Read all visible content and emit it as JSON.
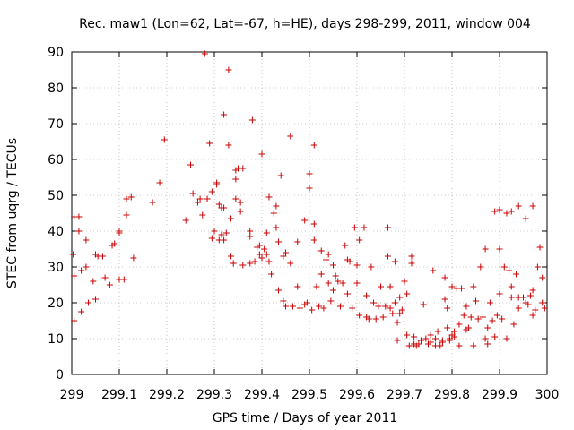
{
  "chart_data": {
    "type": "scatter",
    "title": "Rec. maw1 (Lon=62, Lat=-67, h=HE), days 298-299, 2011, window 004",
    "xlabel": "GPS time / Days of year 2011",
    "ylabel": "STEC from uqrg / TECUs",
    "xlim": [
      299,
      300
    ],
    "ylim": [
      0,
      90
    ],
    "grid": true,
    "marker": "+",
    "color": "#cc0000",
    "x_ticks": [
      299,
      299.1,
      299.2,
      299.3,
      299.4,
      299.5,
      299.6,
      299.7,
      299.8,
      299.9,
      300
    ],
    "x_tick_labels": [
      "299",
      "299.1",
      "299.2",
      "299.3",
      "299.4",
      "299.5",
      "299.6",
      "299.7",
      "299.8",
      "299.9",
      "300"
    ],
    "y_ticks": [
      0,
      10,
      20,
      30,
      40,
      50,
      60,
      70,
      80,
      90
    ],
    "y_tick_labels": [
      "0",
      "10",
      "20",
      "30",
      "40",
      "50",
      "60",
      "70",
      "80",
      "90"
    ],
    "series": [
      {
        "name": "STEC",
        "points": [
          [
            299.003,
            33.5
          ],
          [
            299.005,
            27.5
          ],
          [
            299.005,
            15
          ],
          [
            299.005,
            44
          ],
          [
            299.015,
            44
          ],
          [
            299.015,
            40
          ],
          [
            299.02,
            17.5
          ],
          [
            299.02,
            29
          ],
          [
            299.03,
            37.5
          ],
          [
            299.03,
            30
          ],
          [
            299.035,
            20
          ],
          [
            299.045,
            26
          ],
          [
            299.05,
            33.5
          ],
          [
            299.05,
            21
          ],
          [
            299.055,
            33
          ],
          [
            299.065,
            33
          ],
          [
            299.07,
            27
          ],
          [
            299.08,
            25
          ],
          [
            299.085,
            36
          ],
          [
            299.09,
            36.5
          ],
          [
            299.1,
            40
          ],
          [
            299.1,
            39.5
          ],
          [
            299.1,
            26.5
          ],
          [
            299.11,
            26.5
          ],
          [
            299.115,
            49
          ],
          [
            299.115,
            44.5
          ],
          [
            299.125,
            49.5
          ],
          [
            299.13,
            32.5
          ],
          [
            299.17,
            48
          ],
          [
            299.185,
            53.5
          ],
          [
            299.195,
            65.5
          ],
          [
            299.24,
            43
          ],
          [
            299.25,
            58.5
          ],
          [
            299.255,
            50.5
          ],
          [
            299.265,
            48
          ],
          [
            299.27,
            49
          ],
          [
            299.275,
            44.5
          ],
          [
            299.28,
            89.5
          ],
          [
            299.285,
            49
          ],
          [
            299.29,
            64.5
          ],
          [
            299.295,
            51
          ],
          [
            299.295,
            38
          ],
          [
            299.3,
            40
          ],
          [
            299.305,
            53.5
          ],
          [
            299.305,
            53
          ],
          [
            299.31,
            47.5
          ],
          [
            299.31,
            37.5
          ],
          [
            299.315,
            46.5
          ],
          [
            299.315,
            39
          ],
          [
            299.32,
            72.5
          ],
          [
            299.32,
            46.5
          ],
          [
            299.32,
            37.5
          ],
          [
            299.325,
            39.5
          ],
          [
            299.33,
            85
          ],
          [
            299.33,
            64
          ],
          [
            299.335,
            43.5
          ],
          [
            299.335,
            33
          ],
          [
            299.34,
            31
          ],
          [
            299.345,
            57
          ],
          [
            299.345,
            54.5
          ],
          [
            299.345,
            49
          ],
          [
            299.35,
            57.5
          ],
          [
            299.355,
            48
          ],
          [
            299.355,
            45.5
          ],
          [
            299.36,
            30.5
          ],
          [
            299.36,
            57.5
          ],
          [
            299.375,
            31
          ],
          [
            299.375,
            40
          ],
          [
            299.375,
            38.5
          ],
          [
            299.38,
            71
          ],
          [
            299.385,
            31.5
          ],
          [
            299.39,
            35.5
          ],
          [
            299.395,
            36
          ],
          [
            299.395,
            33.5
          ],
          [
            299.4,
            61.5
          ],
          [
            299.4,
            32.5
          ],
          [
            299.405,
            35
          ],
          [
            299.41,
            39.5
          ],
          [
            299.41,
            33.5
          ],
          [
            299.415,
            49.5
          ],
          [
            299.415,
            31.5
          ],
          [
            299.42,
            28
          ],
          [
            299.425,
            45
          ],
          [
            299.43,
            47
          ],
          [
            299.43,
            41
          ],
          [
            299.435,
            37
          ],
          [
            299.435,
            23.5
          ],
          [
            299.44,
            55.5
          ],
          [
            299.445,
            33
          ],
          [
            299.445,
            20.5
          ],
          [
            299.45,
            34
          ],
          [
            299.45,
            19
          ],
          [
            299.46,
            66.5
          ],
          [
            299.46,
            31
          ],
          [
            299.465,
            19
          ],
          [
            299.475,
            37
          ],
          [
            299.475,
            24.5
          ],
          [
            299.48,
            18.5
          ],
          [
            299.49,
            43
          ],
          [
            299.49,
            19.5
          ],
          [
            299.495,
            20
          ],
          [
            299.5,
            56
          ],
          [
            299.5,
            52
          ],
          [
            299.505,
            18
          ],
          [
            299.51,
            64
          ],
          [
            299.51,
            42
          ],
          [
            299.51,
            37.5
          ],
          [
            299.515,
            24.5
          ],
          [
            299.52,
            19
          ],
          [
            299.525,
            34.5
          ],
          [
            299.525,
            28
          ],
          [
            299.53,
            18.5
          ],
          [
            299.535,
            32
          ],
          [
            299.54,
            33.5
          ],
          [
            299.54,
            25.5
          ],
          [
            299.545,
            20.5
          ],
          [
            299.55,
            30.5
          ],
          [
            299.55,
            23.5
          ],
          [
            299.555,
            27.5
          ],
          [
            299.56,
            26
          ],
          [
            299.565,
            19
          ],
          [
            299.57,
            25.5
          ],
          [
            299.575,
            36
          ],
          [
            299.58,
            32
          ],
          [
            299.58,
            22.5
          ],
          [
            299.585,
            31.5
          ],
          [
            299.59,
            18.5
          ],
          [
            299.595,
            41
          ],
          [
            299.6,
            30.5
          ],
          [
            299.6,
            25.5
          ],
          [
            299.605,
            37.5
          ],
          [
            299.605,
            16.5
          ],
          [
            299.615,
            41
          ],
          [
            299.62,
            22
          ],
          [
            299.62,
            16
          ],
          [
            299.625,
            15.5
          ],
          [
            299.63,
            30
          ],
          [
            299.635,
            20
          ],
          [
            299.64,
            15.5
          ],
          [
            299.645,
            19
          ],
          [
            299.65,
            24.5
          ],
          [
            299.655,
            16
          ],
          [
            299.66,
            19
          ],
          [
            299.665,
            41
          ],
          [
            299.665,
            33
          ],
          [
            299.67,
            24.5
          ],
          [
            299.67,
            18.5
          ],
          [
            299.675,
            17
          ],
          [
            299.68,
            31.5
          ],
          [
            299.68,
            20
          ],
          [
            299.685,
            14.5
          ],
          [
            299.685,
            9.5
          ],
          [
            299.69,
            21.5
          ],
          [
            299.69,
            17
          ],
          [
            299.695,
            18
          ],
          [
            299.7,
            26
          ],
          [
            299.705,
            22.5
          ],
          [
            299.705,
            11
          ],
          [
            299.71,
            8
          ],
          [
            299.715,
            33
          ],
          [
            299.715,
            31
          ],
          [
            299.72,
            10.5
          ],
          [
            299.72,
            8.5
          ],
          [
            299.725,
            8
          ],
          [
            299.73,
            8.5
          ],
          [
            299.735,
            9.5
          ],
          [
            299.74,
            19.5
          ],
          [
            299.745,
            10
          ],
          [
            299.75,
            8.5
          ],
          [
            299.755,
            11
          ],
          [
            299.755,
            9
          ],
          [
            299.76,
            29
          ],
          [
            299.765,
            10
          ],
          [
            299.765,
            8
          ],
          [
            299.77,
            12
          ],
          [
            299.775,
            8
          ],
          [
            299.78,
            9.5
          ],
          [
            299.78,
            9
          ],
          [
            299.785,
            27
          ],
          [
            299.785,
            21
          ],
          [
            299.79,
            18.5
          ],
          [
            299.79,
            13
          ],
          [
            299.795,
            10
          ],
          [
            299.795,
            9.5
          ],
          [
            299.8,
            24.5
          ],
          [
            299.8,
            11
          ],
          [
            299.805,
            12
          ],
          [
            299.805,
            10.5
          ],
          [
            299.81,
            24
          ],
          [
            299.815,
            14
          ],
          [
            299.815,
            8
          ],
          [
            299.82,
            24
          ],
          [
            299.825,
            16.5
          ],
          [
            299.83,
            19
          ],
          [
            299.83,
            12.5
          ],
          [
            299.835,
            13
          ],
          [
            299.84,
            16
          ],
          [
            299.845,
            8
          ],
          [
            299.845,
            24.5
          ],
          [
            299.85,
            20.5
          ],
          [
            299.855,
            15.5
          ],
          [
            299.86,
            30
          ],
          [
            299.865,
            16
          ],
          [
            299.87,
            35
          ],
          [
            299.87,
            10
          ],
          [
            299.875,
            8.5
          ],
          [
            299.875,
            13
          ],
          [
            299.88,
            20
          ],
          [
            299.885,
            15
          ],
          [
            299.89,
            45.5
          ],
          [
            299.89,
            10.5
          ],
          [
            299.895,
            16.5
          ],
          [
            299.9,
            46
          ],
          [
            299.9,
            35
          ],
          [
            299.9,
            22.5
          ],
          [
            299.905,
            15.5
          ],
          [
            299.91,
            30
          ],
          [
            299.915,
            45
          ],
          [
            299.915,
            10
          ],
          [
            299.92,
            29
          ],
          [
            299.925,
            45.5
          ],
          [
            299.925,
            24.5
          ],
          [
            299.925,
            21.5
          ],
          [
            299.93,
            14
          ],
          [
            299.935,
            28
          ],
          [
            299.94,
            47
          ],
          [
            299.94,
            21.5
          ],
          [
            299.94,
            18.5
          ],
          [
            299.95,
            21.5
          ],
          [
            299.955,
            43.5
          ],
          [
            299.955,
            20
          ],
          [
            299.96,
            19.5
          ],
          [
            299.965,
            22
          ],
          [
            299.97,
            47
          ],
          [
            299.97,
            23.5
          ],
          [
            299.97,
            16.5
          ],
          [
            299.975,
            18
          ],
          [
            299.98,
            30
          ],
          [
            299.985,
            35.5
          ],
          [
            299.99,
            27
          ],
          [
            299.99,
            20
          ],
          [
            299.995,
            18.5
          ]
        ]
      }
    ]
  }
}
